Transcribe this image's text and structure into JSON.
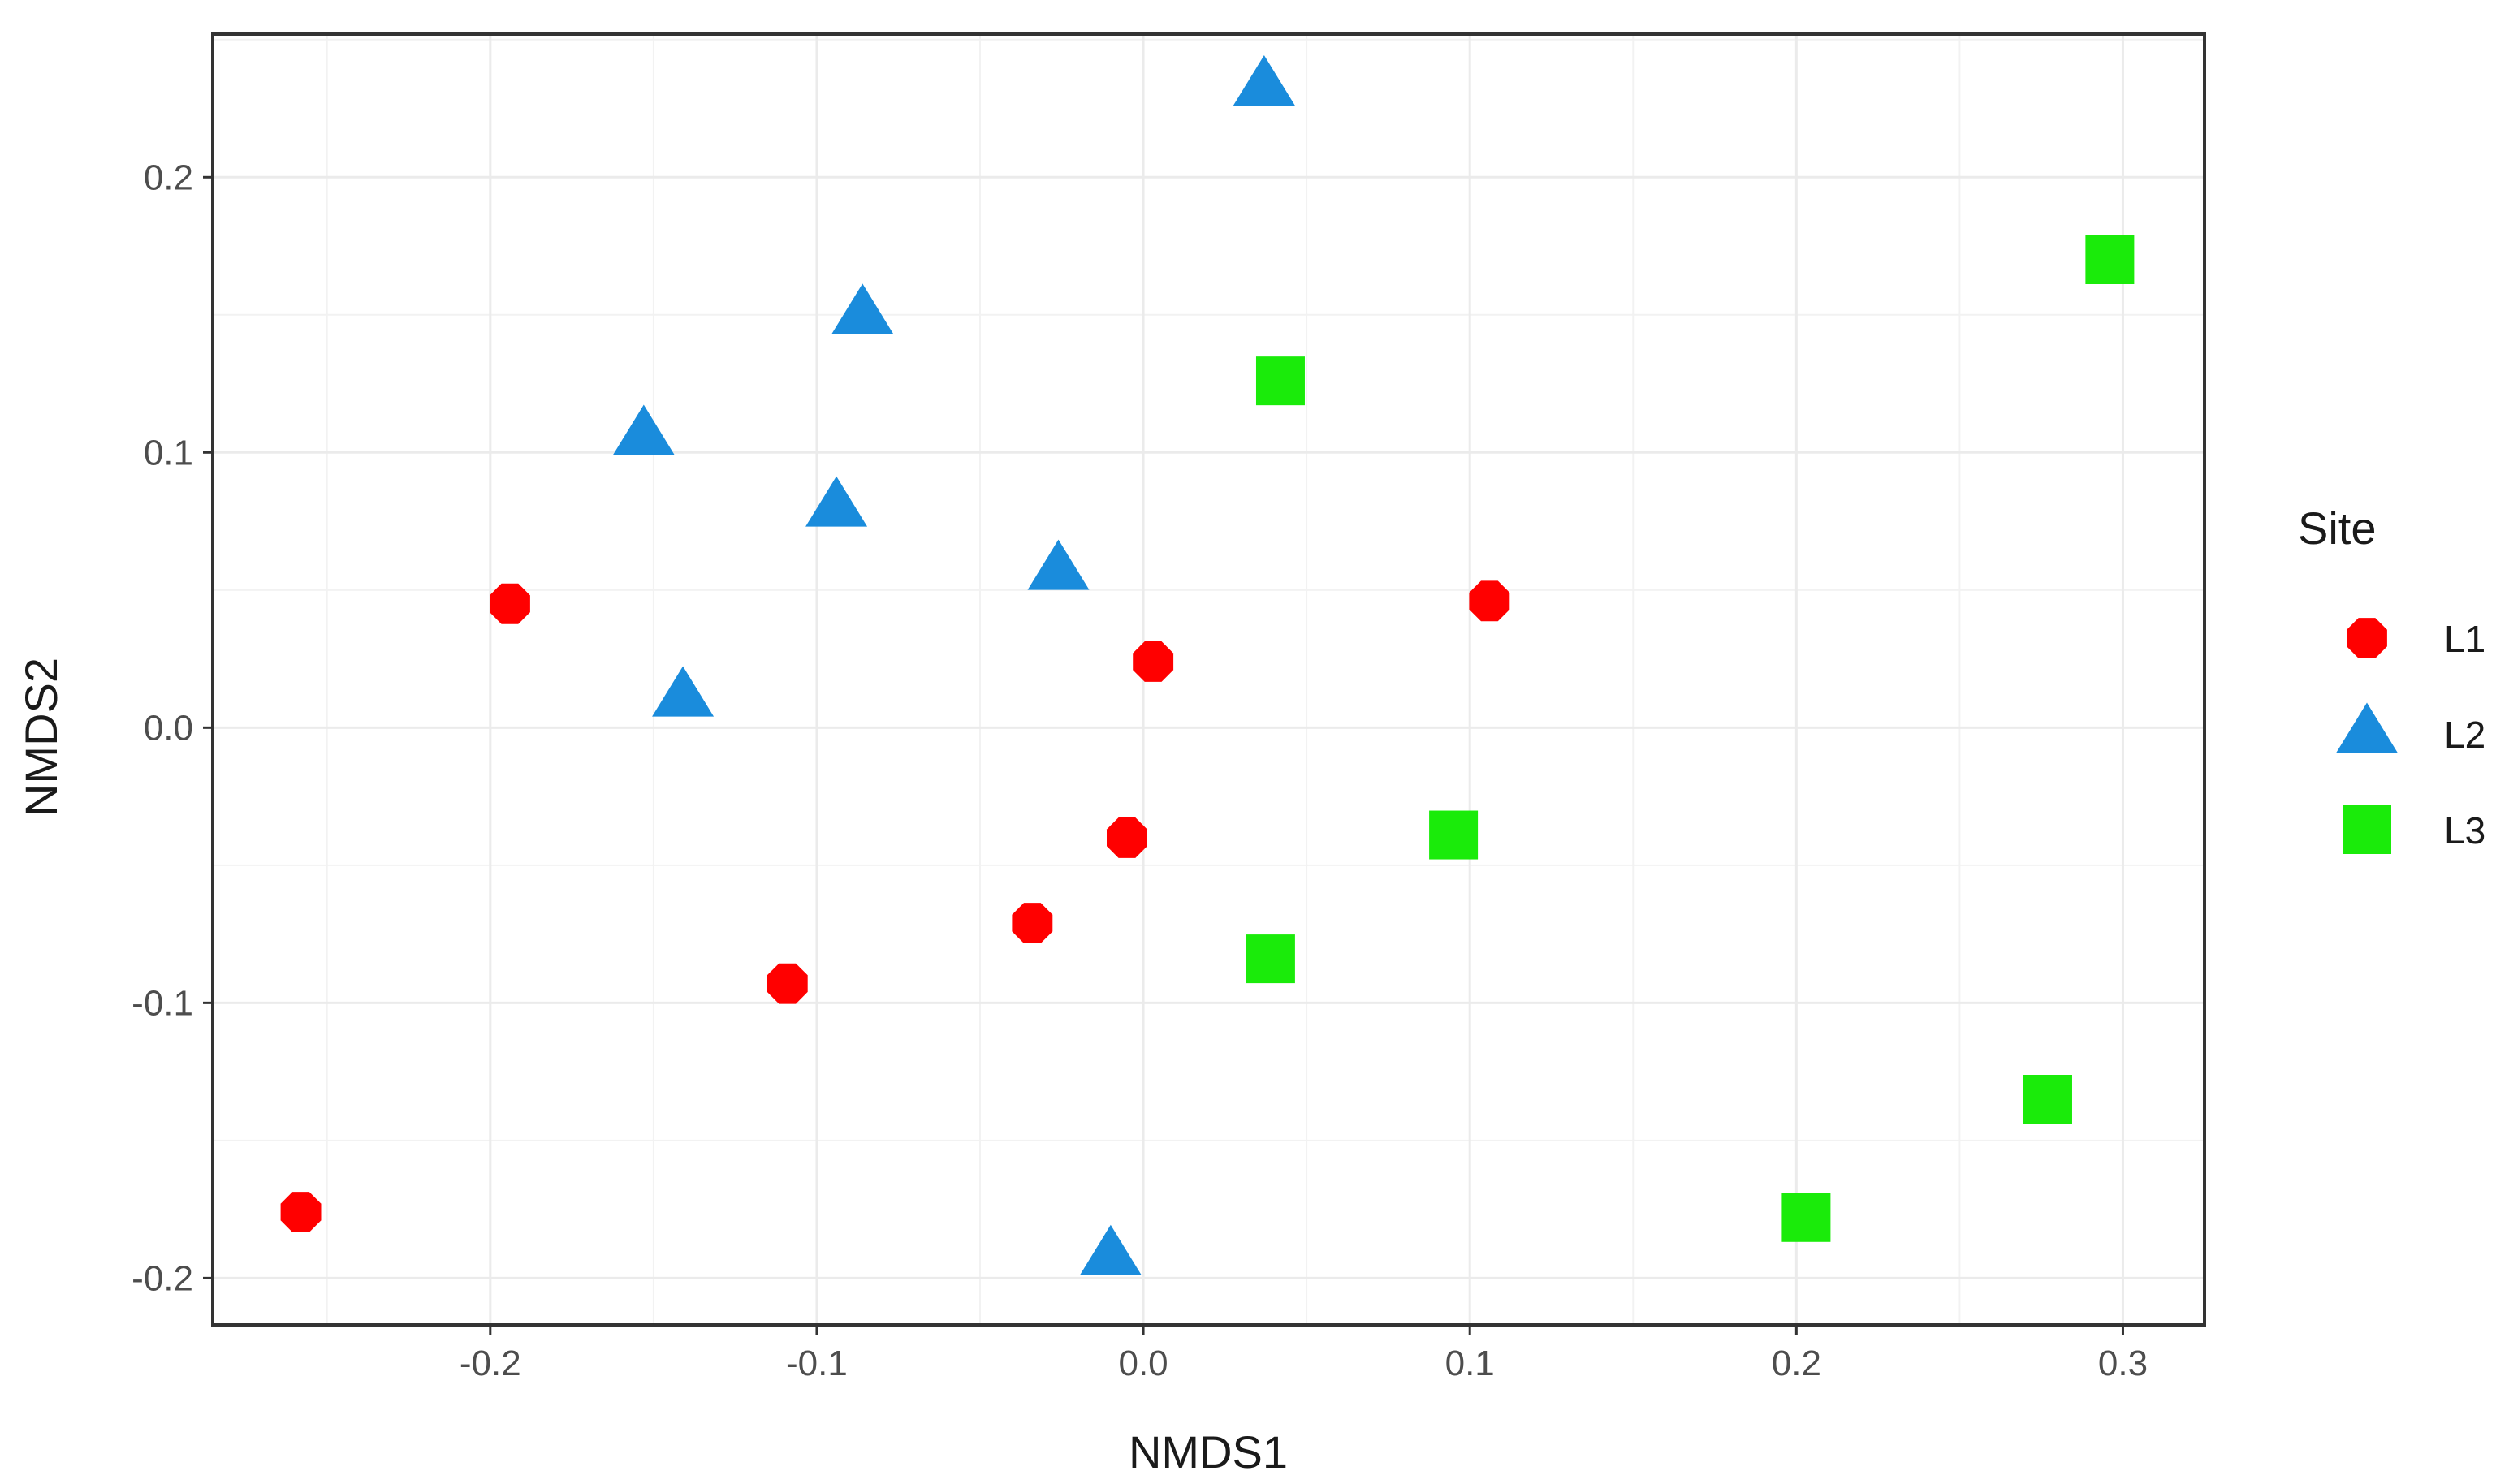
{
  "chart_data": {
    "type": "scatter",
    "xlabel": "NMDS1",
    "ylabel": "NMDS2",
    "xlim": [
      -0.285,
      0.325
    ],
    "ylim": [
      -0.217,
      0.252
    ],
    "x_ticks": [
      "-0.2",
      "-0.1",
      "0.0",
      "0.1",
      "0.2",
      "0.3"
    ],
    "x_tick_values": [
      -0.2,
      -0.1,
      0.0,
      0.1,
      0.2,
      0.3
    ],
    "y_ticks": [
      "0.2",
      "0.1",
      "0.0",
      "-0.1",
      "-0.2"
    ],
    "y_tick_values": [
      0.2,
      0.1,
      0.0,
      -0.1,
      -0.2
    ],
    "grid": true,
    "legend_title": "Site",
    "legend_position": "right",
    "series": [
      {
        "name": "L1",
        "marker": "circle",
        "color": "#ff0000",
        "points": [
          {
            "x": -0.258,
            "y": -0.176
          },
          {
            "x": -0.194,
            "y": 0.045
          },
          {
            "x": -0.109,
            "y": -0.093
          },
          {
            "x": -0.034,
            "y": -0.071
          },
          {
            "x": -0.005,
            "y": -0.04
          },
          {
            "x": 0.003,
            "y": 0.024
          },
          {
            "x": 0.106,
            "y": 0.046
          }
        ]
      },
      {
        "name": "L2",
        "marker": "triangle",
        "color": "#1a8cdc",
        "points": [
          {
            "x": 0.037,
            "y": 0.233
          },
          {
            "x": -0.086,
            "y": 0.15
          },
          {
            "x": -0.153,
            "y": 0.106
          },
          {
            "x": -0.094,
            "y": 0.08
          },
          {
            "x": -0.026,
            "y": 0.057
          },
          {
            "x": -0.141,
            "y": 0.011
          },
          {
            "x": -0.01,
            "y": -0.192
          }
        ]
      },
      {
        "name": "L3",
        "marker": "square",
        "color": "#1aeb0a",
        "points": [
          {
            "x": 0.296,
            "y": 0.17
          },
          {
            "x": 0.042,
            "y": 0.126
          },
          {
            "x": 0.095,
            "y": -0.039
          },
          {
            "x": 0.039,
            "y": -0.084
          },
          {
            "x": 0.277,
            "y": -0.135
          },
          {
            "x": 0.203,
            "y": -0.178
          }
        ]
      }
    ]
  }
}
